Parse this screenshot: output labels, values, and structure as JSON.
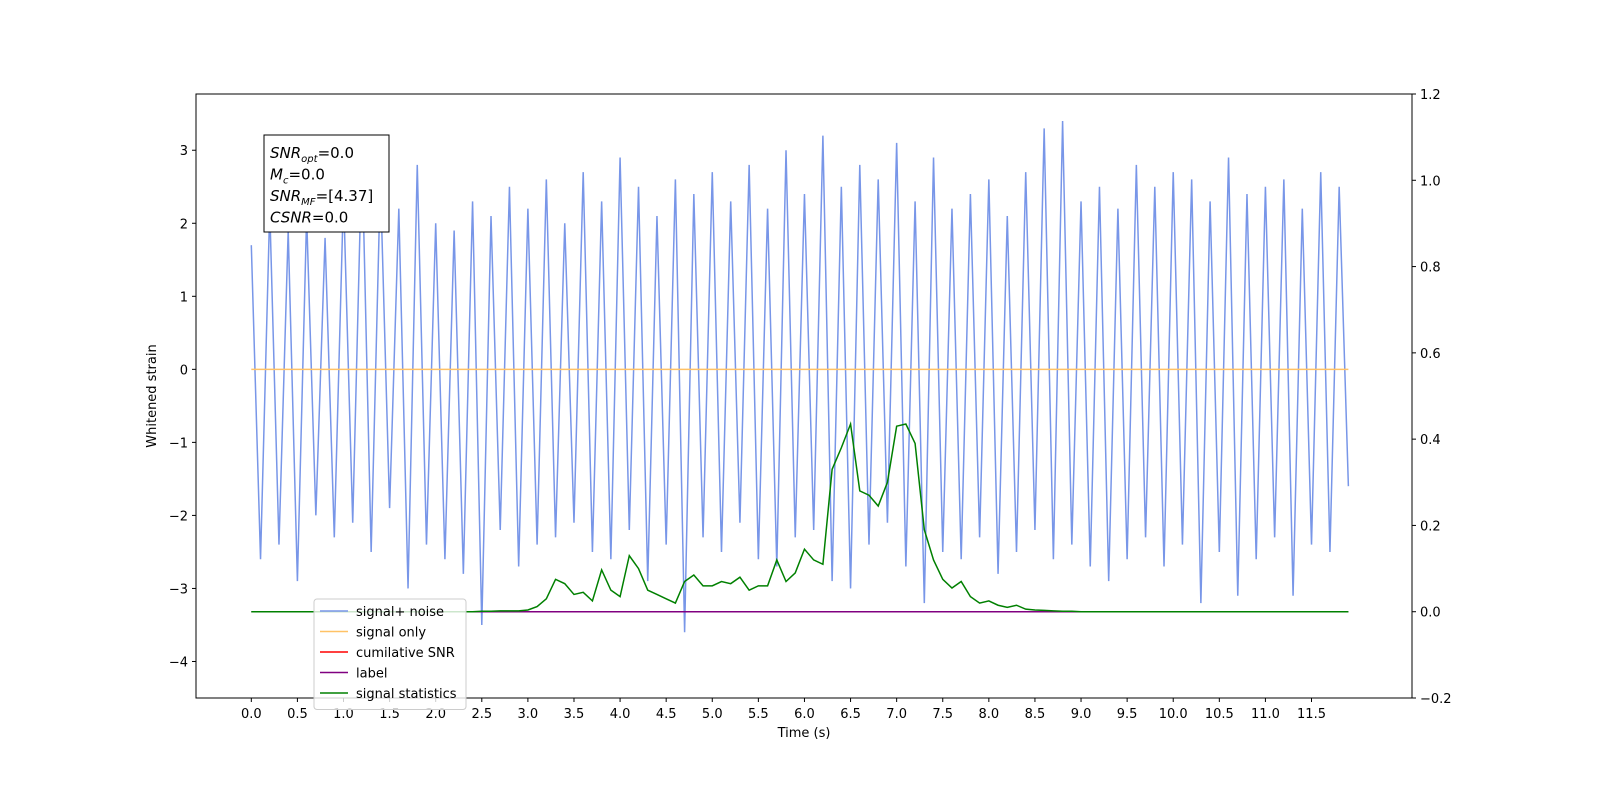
{
  "chart_data": {
    "type": "line",
    "xlabel": "Time (s)",
    "ylabel": "Whitened strain",
    "x": [
      0,
      0.1,
      0.2,
      0.3,
      0.4,
      0.5,
      0.6,
      0.7,
      0.8,
      0.9,
      1,
      1.1,
      1.2,
      1.3,
      1.4,
      1.5,
      1.6,
      1.7,
      1.8,
      1.9,
      2,
      2.1,
      2.2,
      2.3,
      2.4,
      2.5,
      2.6,
      2.7,
      2.8,
      2.9,
      3,
      3.1,
      3.2,
      3.3,
      3.4,
      3.5,
      3.6,
      3.7,
      3.8,
      3.9,
      4,
      4.1,
      4.2,
      4.3,
      4.4,
      4.5,
      4.6,
      4.7,
      4.8,
      4.9,
      5,
      5.1,
      5.2,
      5.3,
      5.4,
      5.5,
      5.6,
      5.7,
      5.8,
      5.9,
      6,
      6.1,
      6.2,
      6.3,
      6.4,
      6.5,
      6.6,
      6.7,
      6.8,
      6.9,
      7,
      7.1,
      7.2,
      7.3,
      7.4,
      7.5,
      7.6,
      7.7,
      7.8,
      7.9,
      8,
      8.1,
      8.2,
      8.3,
      8.4,
      8.5,
      8.6,
      8.7,
      8.8,
      8.9,
      9,
      9.1,
      9.2,
      9.3,
      9.4,
      9.5,
      9.6,
      9.7,
      9.8,
      9.9,
      10,
      10.1,
      10.2,
      10.3,
      10.4,
      10.5,
      10.6,
      10.7,
      10.8,
      10.9,
      11,
      11.1,
      11.2,
      11.3,
      11.4,
      11.5,
      11.6,
      11.7,
      11.8,
      11.9
    ],
    "series": [
      {
        "name": "signal+ noise",
        "color": "#7896e8",
        "axis": "y",
        "values": [
          1.7,
          -2.6,
          2.2,
          -2.4,
          1.9,
          -2.9,
          2.1,
          -2.0,
          1.8,
          -2.3,
          2.4,
          -2.1,
          3.0,
          -2.5,
          2.6,
          -1.9,
          2.2,
          -3.0,
          2.8,
          -2.4,
          2.0,
          -2.6,
          1.9,
          -2.8,
          2.3,
          -3.5,
          2.1,
          -2.2,
          2.5,
          -2.7,
          2.2,
          -2.4,
          2.6,
          -2.3,
          2.0,
          -2.1,
          2.7,
          -2.5,
          2.3,
          -2.6,
          2.9,
          -2.2,
          2.5,
          -2.9,
          2.1,
          -2.4,
          2.6,
          -3.6,
          2.4,
          -2.3,
          2.7,
          -2.5,
          2.3,
          -2.1,
          2.8,
          -2.6,
          2.2,
          -2.7,
          3.0,
          -2.3,
          2.4,
          -2.2,
          3.2,
          -2.9,
          2.5,
          -3.0,
          2.8,
          -2.4,
          2.6,
          -2.1,
          3.1,
          -2.7,
          2.3,
          -3.2,
          2.9,
          -2.5,
          2.2,
          -2.6,
          2.4,
          -2.3,
          2.6,
          -2.8,
          2.1,
          -2.5,
          2.7,
          -2.2,
          3.3,
          -2.6,
          3.4,
          -2.4,
          2.3,
          -2.7,
          2.5,
          -2.9,
          2.2,
          -2.6,
          2.8,
          -2.3,
          2.5,
          -2.7,
          2.7,
          -2.4,
          2.6,
          -3.2,
          2.3,
          -2.5,
          2.9,
          -3.1,
          2.4,
          -2.6,
          2.5,
          -2.3,
          2.6,
          -3.1,
          2.2,
          -2.4,
          2.7,
          -2.5,
          2.5,
          -1.6
        ]
      },
      {
        "name": "signal only",
        "color": "#ffc266",
        "axis": "y",
        "x": [
          0,
          11.9
        ],
        "values": [
          0,
          0
        ]
      },
      {
        "name": "cumilative SNR",
        "color": "#ff0000",
        "axis": "y2"
      },
      {
        "name": "label",
        "color": "#800080",
        "axis": "y2",
        "x": [
          0,
          11.9
        ],
        "values": [
          0,
          0
        ]
      },
      {
        "name": "signal statistics",
        "color": "#008000",
        "axis": "y2",
        "values": [
          0,
          0,
          0,
          0,
          0,
          0,
          0,
          0,
          0,
          0,
          0,
          0,
          0,
          0,
          0,
          0,
          0,
          0,
          0,
          0,
          0,
          0,
          0,
          0,
          0,
          0.001,
          0.001,
          0.002,
          0.002,
          0.002,
          0.004,
          0.012,
          0.03,
          0.075,
          0.065,
          0.04,
          0.045,
          0.025,
          0.097,
          0.05,
          0.035,
          0.13,
          0.1,
          0.05,
          0.04,
          0.03,
          0.02,
          0.07,
          0.085,
          0.06,
          0.06,
          0.07,
          0.065,
          0.08,
          0.05,
          0.06,
          0.06,
          0.12,
          0.07,
          0.09,
          0.145,
          0.12,
          0.11,
          0.33,
          0.38,
          0.435,
          0.28,
          0.27,
          0.245,
          0.3,
          0.43,
          0.435,
          0.39,
          0.19,
          0.12,
          0.075,
          0.055,
          0.07,
          0.035,
          0.02,
          0.025,
          0.015,
          0.01,
          0.015,
          0.006,
          0.004,
          0.003,
          0.002,
          0.001,
          0.001,
          0,
          0,
          0,
          0,
          0,
          0,
          0,
          0,
          0,
          0,
          0,
          0,
          0,
          0,
          0,
          0,
          0,
          0,
          0,
          0,
          0,
          0,
          0,
          0,
          0,
          0,
          0,
          0,
          0,
          0
        ]
      }
    ],
    "xlim": [
      -0.6,
      12.59
    ],
    "ylim": [
      -4.5,
      3.77
    ],
    "y2lim": [
      -0.2,
      1.2
    ],
    "xticks": [
      {
        "value": 0,
        "label": "0.0"
      },
      {
        "value": 0.5,
        "label": "0.5"
      },
      {
        "value": 1,
        "label": "1.0"
      },
      {
        "value": 1.5,
        "label": "1.5"
      },
      {
        "value": 2,
        "label": "2.0"
      },
      {
        "value": 2.5,
        "label": "2.5"
      },
      {
        "value": 3,
        "label": "3.0"
      },
      {
        "value": 3.5,
        "label": "3.5"
      },
      {
        "value": 4,
        "label": "4.0"
      },
      {
        "value": 4.5,
        "label": "4.5"
      },
      {
        "value": 5,
        "label": "5.0"
      },
      {
        "value": 5.5,
        "label": "5.5"
      },
      {
        "value": 6,
        "label": "6.0"
      },
      {
        "value": 6.5,
        "label": "6.5"
      },
      {
        "value": 7,
        "label": "7.0"
      },
      {
        "value": 7.5,
        "label": "7.5"
      },
      {
        "value": 8,
        "label": "8.0"
      },
      {
        "value": 8.5,
        "label": "8.5"
      },
      {
        "value": 9,
        "label": "9.0"
      },
      {
        "value": 9.5,
        "label": "9.5"
      },
      {
        "value": 10,
        "label": "10.0"
      },
      {
        "value": 10.5,
        "label": "10.5"
      },
      {
        "value": 11,
        "label": "11.0"
      },
      {
        "value": 11.5,
        "label": "11.5"
      }
    ],
    "yticks": [
      {
        "value": -4,
        "label": "−4"
      },
      {
        "value": -3,
        "label": "−3"
      },
      {
        "value": -2,
        "label": "−2"
      },
      {
        "value": -1,
        "label": "−1"
      },
      0,
      1,
      2,
      3
    ],
    "y2ticks": [
      {
        "value": -0.2,
        "label": "−0.2"
      },
      {
        "value": 0,
        "label": "0.0"
      },
      {
        "value": 0.2,
        "label": "0.2"
      },
      {
        "value": 0.4,
        "label": "0.4"
      },
      {
        "value": 0.6,
        "label": "0.6"
      },
      {
        "value": 0.8,
        "label": "0.8"
      },
      {
        "value": 1,
        "label": "1.0"
      },
      {
        "value": 1.2,
        "label": "1.2"
      }
    ],
    "annotation": [
      {
        "main": "SNR",
        "sub": "opt",
        "rest": "=0.0"
      },
      {
        "main": "M",
        "sub": "c",
        "rest": "=0.0"
      },
      {
        "main": "SNR",
        "sub": "MF",
        "rest": "=[4.37]"
      },
      {
        "main": "CSNR",
        "rest": "=0.0"
      }
    ],
    "legend": "lower left"
  }
}
